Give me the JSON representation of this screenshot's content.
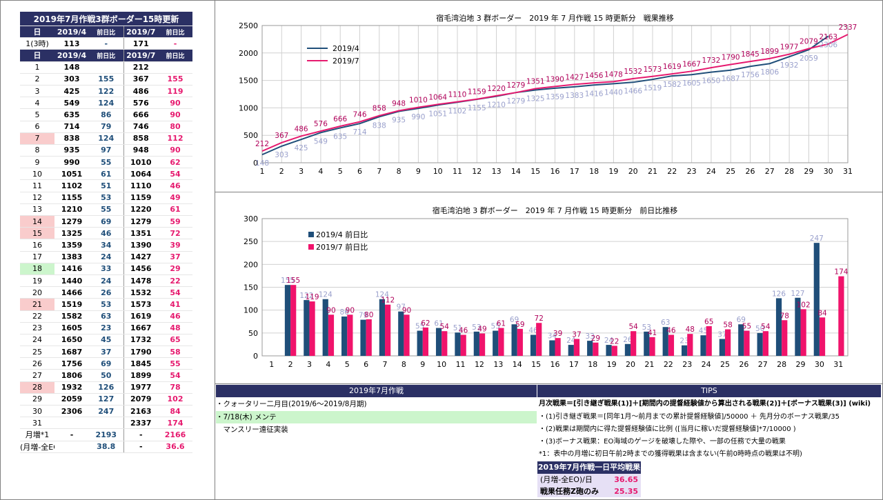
{
  "table": {
    "title": "2019年7月作戦3群ボーダー15時更新",
    "header": [
      "日",
      "2019/4",
      "前日比",
      "2019/7",
      "前日比"
    ],
    "first_row": [
      "1(3時)",
      "113",
      "-",
      "171",
      "-"
    ],
    "rows": [
      [
        "1",
        "148",
        "",
        "212",
        ""
      ],
      [
        "2",
        "303",
        "155",
        "367",
        "155"
      ],
      [
        "3",
        "425",
        "122",
        "486",
        "119"
      ],
      [
        "4",
        "549",
        "124",
        "576",
        "90"
      ],
      [
        "5",
        "635",
        "86",
        "666",
        "90"
      ],
      [
        "6",
        "714",
        "79",
        "746",
        "80"
      ],
      [
        "7",
        "838",
        "124",
        "858",
        "112"
      ],
      [
        "8",
        "935",
        "97",
        "948",
        "90"
      ],
      [
        "9",
        "990",
        "55",
        "1010",
        "62"
      ],
      [
        "10",
        "1051",
        "61",
        "1064",
        "54"
      ],
      [
        "11",
        "1102",
        "51",
        "1110",
        "46"
      ],
      [
        "12",
        "1155",
        "53",
        "1159",
        "49"
      ],
      [
        "13",
        "1210",
        "55",
        "1220",
        "61"
      ],
      [
        "14",
        "1279",
        "69",
        "1279",
        "59"
      ],
      [
        "15",
        "1325",
        "46",
        "1351",
        "72"
      ],
      [
        "16",
        "1359",
        "34",
        "1390",
        "39"
      ],
      [
        "17",
        "1383",
        "24",
        "1427",
        "37"
      ],
      [
        "18",
        "1416",
        "33",
        "1456",
        "29"
      ],
      [
        "19",
        "1440",
        "24",
        "1478",
        "22"
      ],
      [
        "20",
        "1466",
        "26",
        "1532",
        "54"
      ],
      [
        "21",
        "1519",
        "53",
        "1573",
        "41"
      ],
      [
        "22",
        "1582",
        "63",
        "1619",
        "46"
      ],
      [
        "23",
        "1605",
        "23",
        "1667",
        "48"
      ],
      [
        "24",
        "1650",
        "45",
        "1732",
        "65"
      ],
      [
        "25",
        "1687",
        "37",
        "1790",
        "58"
      ],
      [
        "26",
        "1756",
        "69",
        "1845",
        "55"
      ],
      [
        "27",
        "1806",
        "50",
        "1899",
        "54"
      ],
      [
        "28",
        "1932",
        "126",
        "1977",
        "78"
      ],
      [
        "29",
        "2059",
        "127",
        "2079",
        "102"
      ],
      [
        "30",
        "2306",
        "247",
        "2163",
        "84"
      ],
      [
        "31",
        "",
        "",
        "2337",
        "174"
      ]
    ],
    "pink_days": [
      "7",
      "14",
      "15",
      "21",
      "28"
    ],
    "green_days": [
      "18"
    ],
    "footer": [
      [
        "月増*1",
        "-",
        "2193",
        "-",
        "2166"
      ],
      [
        "(月増-全EO)/日",
        "38.8",
        "",
        "-",
        "36.6"
      ]
    ]
  },
  "chart_data": [
    {
      "type": "line",
      "title": "宿毛湾泊地 3 群ボーダー　2019 年 7 月作戦 15 時更新分　戦果推移",
      "x": [
        1,
        2,
        3,
        4,
        5,
        6,
        7,
        8,
        9,
        10,
        11,
        12,
        13,
        14,
        15,
        16,
        17,
        18,
        19,
        20,
        21,
        22,
        23,
        24,
        25,
        26,
        27,
        28,
        29,
        30,
        31
      ],
      "ylim": [
        0,
        2500
      ],
      "yticks": [
        0,
        500,
        1000,
        1500,
        2000,
        2500
      ],
      "grid": true,
      "legend": "top-left",
      "series": [
        {
          "name": "2019/4",
          "color": "#1f4e79",
          "label_color": "#9aa0cc",
          "values": [
            148,
            303,
            425,
            549,
            635,
            714,
            838,
            935,
            990,
            1051,
            1102,
            1155,
            1210,
            1279,
            1325,
            1359,
            1383,
            1416,
            1440,
            1466,
            1519,
            1582,
            1605,
            1650,
            1687,
            1756,
            1806,
            1932,
            2059,
            2306,
            null
          ]
        },
        {
          "name": "2019/7",
          "color": "#e6196e",
          "label_color": "#b0005a",
          "values": [
            212,
            367,
            486,
            576,
            666,
            746,
            858,
            948,
            1010,
            1064,
            1110,
            1159,
            1220,
            1279,
            1351,
            1390,
            1427,
            1456,
            1478,
            1532,
            1573,
            1619,
            1667,
            1732,
            1790,
            1845,
            1899,
            1977,
            2079,
            2163,
            2337
          ]
        }
      ]
    },
    {
      "type": "bar",
      "title": "宿毛湾泊地 3 群ボーダー　2019 年 7 月作戦 15 時更新分　前日比推移",
      "categories": [
        1,
        2,
        3,
        4,
        5,
        6,
        7,
        8,
        9,
        10,
        11,
        12,
        13,
        14,
        15,
        16,
        17,
        18,
        19,
        20,
        21,
        22,
        23,
        24,
        25,
        26,
        27,
        28,
        29,
        30,
        31
      ],
      "ylim": [
        0,
        300
      ],
      "yticks": [
        0,
        50,
        100,
        150,
        200,
        250,
        300
      ],
      "grid": true,
      "legend": "top-left",
      "series": [
        {
          "name": "2019/4 前日比",
          "color": "#1f4e79",
          "label_color": "#9aa0cc",
          "values": [
            null,
            155,
            122,
            124,
            86,
            79,
            124,
            97,
            55,
            61,
            51,
            53,
            55,
            69,
            46,
            34,
            24,
            33,
            24,
            26,
            53,
            63,
            23,
            45,
            37,
            69,
            50,
            126,
            127,
            247,
            null
          ]
        },
        {
          "name": "2019/7 前日比",
          "color": "#f0136b",
          "label_color": "#b0005a",
          "values": [
            null,
            155,
            119,
            90,
            90,
            80,
            112,
            90,
            62,
            54,
            46,
            49,
            61,
            59,
            72,
            39,
            37,
            29,
            22,
            54,
            41,
            46,
            48,
            65,
            58,
            55,
            54,
            78,
            102,
            84,
            174
          ]
        }
      ]
    }
  ],
  "info": {
    "header": "2019年7月作戦",
    "lines": [
      "・クォータリー二月目(2019/6～2019/8月期)",
      "・7/18(木) メンテ",
      "　マンスリー遠征実装"
    ]
  },
  "tips": {
    "header": "TIPS",
    "lines": [
      "月次戦果＝[引き継ぎ戦果(1)]＋[期間内の提督経験値から算出される戦果(2)]＋[ボーナス戦果(3)] (wiki)",
      "・(1)引き継ぎ戦果＝[同年1月～前月までの累計提督経験値]/50000 ＋ 先月分のボーナス戦果/35",
      "・(2)戦果は期間内に得た提督経験値に比例 ([当月に稼いだ提督経験値]*7/10000 )",
      "・(3)ボーナス戦果：EO海域のゲージを破壊した際や、一部の任務で大量の戦果",
      "*1：表中の月増に初日午前2時までの獲得戦果は含まない(午前0時時点の戦果は不明)"
    ]
  },
  "summary": {
    "header": "2019年7月作戦一日平均戦果",
    "rows": [
      {
        "label": "(月増-全EO)/日",
        "value": "36.65"
      },
      {
        "label": "戦果任務Z砲のみ",
        "value": "25.35"
      }
    ]
  }
}
